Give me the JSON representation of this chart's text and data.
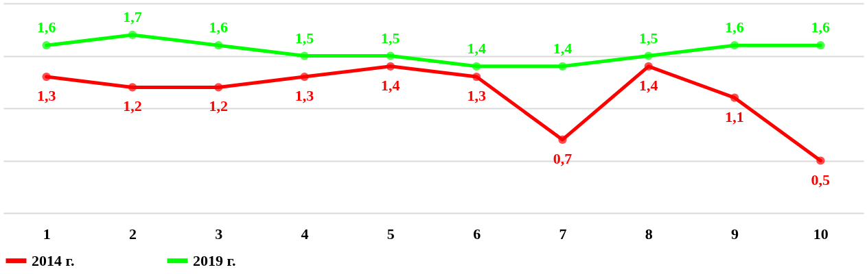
{
  "chart_data": {
    "type": "line",
    "categories": [
      "1",
      "2",
      "3",
      "4",
      "5",
      "6",
      "7",
      "8",
      "9",
      "10"
    ],
    "series": [
      {
        "name": "2014 г.",
        "color": "#ff0000",
        "values": [
          1.3,
          1.2,
          1.2,
          1.3,
          1.4,
          1.3,
          0.7,
          1.4,
          1.1,
          0.5
        ],
        "value_labels": [
          "1,3",
          "1,2",
          "1,2",
          "1,3",
          "1,4",
          "1,3",
          "0,7",
          "1,4",
          "1,1",
          "0,5"
        ]
      },
      {
        "name": "2019 г.",
        "color": "#00ff00",
        "values": [
          1.6,
          1.7,
          1.6,
          1.5,
          1.5,
          1.4,
          1.4,
          1.5,
          1.6,
          1.6
        ],
        "value_labels": [
          "1,6",
          "1,7",
          "1,6",
          "1,5",
          "1,5",
          "1,4",
          "1,4",
          "1,5",
          "1,6",
          "1,6"
        ]
      }
    ],
    "ylim": [
      0,
      2
    ],
    "yticks": [
      {
        "value": 0,
        "label": null
      },
      {
        "value": 0.5,
        "label": null
      },
      {
        "value": 1,
        "label": null
      },
      {
        "value": 1.5,
        "label": null
      },
      {
        "value": 2,
        "label": null
      }
    ],
    "tick_labels": "x",
    "grid": "y",
    "legend": "bottom",
    "marker": "circle",
    "line_style": "solid"
  }
}
